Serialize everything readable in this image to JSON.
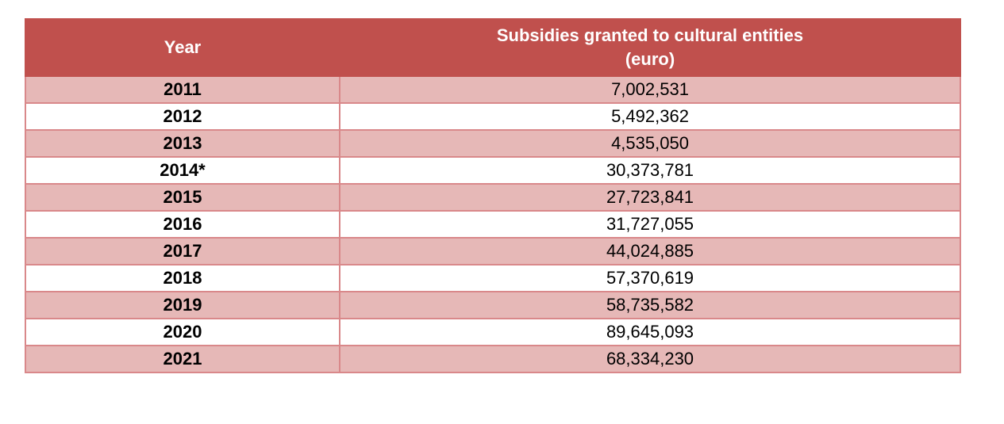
{
  "table": {
    "headers": {
      "year": "Year",
      "value_line1": "Subsidies granted to cultural entities",
      "value_line2": "(euro)"
    },
    "rows": [
      {
        "year": "2011",
        "value": "7,002,531"
      },
      {
        "year": "2012",
        "value": "5,492,362"
      },
      {
        "year": "2013",
        "value": "4,535,050"
      },
      {
        "year": "2014*",
        "value": "30,373,781"
      },
      {
        "year": "2015",
        "value": "27,723,841"
      },
      {
        "year": "2016",
        "value": "31,727,055"
      },
      {
        "year": "2017",
        "value": "44,024,885"
      },
      {
        "year": "2018",
        "value": "57,370,619"
      },
      {
        "year": "2019",
        "value": "58,735,582"
      },
      {
        "year": "2020",
        "value": "89,645,093"
      },
      {
        "year": "2021",
        "value": "68,334,230"
      }
    ]
  },
  "colors": {
    "header_bg": "#c0504d",
    "band_bg": "#e6b8b7",
    "border": "#d9888a"
  }
}
